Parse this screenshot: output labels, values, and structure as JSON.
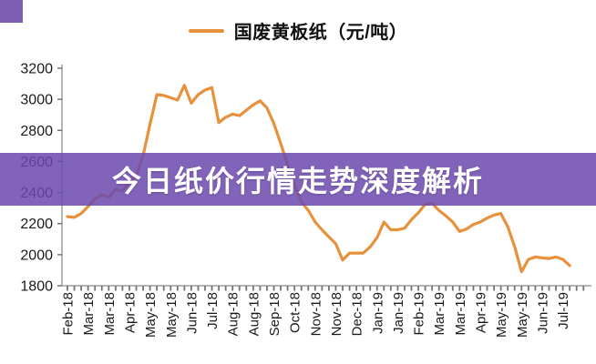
{
  "legend": {
    "label": "国废黄板纸（元/吨）"
  },
  "overlay": {
    "title": "今日纸价行情走势深度解析",
    "bg_rgba": "rgba(107,73,173,0.85)",
    "text_color": "#ffffff"
  },
  "colors": {
    "line": "#e8913c",
    "axis": "#9e9e9e",
    "tick": "#757575",
    "label_text": "#1a1a1a",
    "corner_badge": "#7c5fb3"
  },
  "chart_data": {
    "type": "line",
    "title": "",
    "series_name": "国废黄板纸（元/吨）",
    "unit": "元/吨",
    "legend_position": "top",
    "grid": false,
    "ylim": [
      1800,
      3200
    ],
    "y_ticks": [
      1800,
      2000,
      2200,
      2400,
      2600,
      2800,
      3000,
      3200
    ],
    "x_labels": [
      "Feb-18",
      "Mar-18",
      "Mar-18",
      "Apr-18",
      "May-18",
      "May-18",
      "Jun-18",
      "Jul-18",
      "Aug-18",
      "Aug-18",
      "Sep-18",
      "Oct-18",
      "Nov-18",
      "Nov-18",
      "Dec-18",
      "Jan-19",
      "Jan-19",
      "Feb-19",
      "Mar-19",
      "Mar-19",
      "Apr-19",
      "May-19",
      "May-19",
      "Jun-19",
      "Jul-19"
    ],
    "points_per_label": 3,
    "values": [
      2245,
      2240,
      2265,
      2310,
      2360,
      2385,
      2370,
      2420,
      2410,
      2465,
      2510,
      2640,
      2840,
      3030,
      3025,
      3010,
      2995,
      3090,
      2975,
      3030,
      3060,
      3075,
      2850,
      2885,
      2905,
      2895,
      2930,
      2965,
      2990,
      2945,
      2845,
      2715,
      2580,
      2450,
      2340,
      2285,
      2210,
      2160,
      2115,
      2070,
      1965,
      2010,
      2010,
      2010,
      2050,
      2110,
      2210,
      2160,
      2160,
      2170,
      2225,
      2270,
      2325,
      2330,
      2285,
      2250,
      2210,
      2150,
      2165,
      2195,
      2210,
      2235,
      2255,
      2265,
      2180,
      2050,
      1890,
      1970,
      1985,
      1980,
      1975,
      1985,
      1970,
      1930
    ]
  }
}
